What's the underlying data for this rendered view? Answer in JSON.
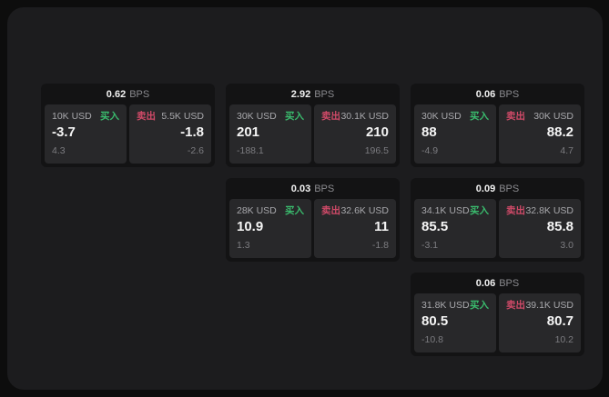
{
  "labels": {
    "bps_unit": "BPS",
    "buy": "买入",
    "sell": "卖出"
  },
  "colors": {
    "buy": "#3abb6d",
    "sell": "#d04a68",
    "panel_bg": "#1c1c1e",
    "card_bg": "#131314",
    "subpanel_bg": "#28282a"
  },
  "cards": [
    {
      "bps": "0.62",
      "buy": {
        "amount": "10K USD",
        "price": "-3.7",
        "delta": "4.3"
      },
      "sell": {
        "amount": "5.5K USD",
        "price": "-1.8",
        "delta": "-2.6"
      }
    },
    {
      "bps": "2.92",
      "buy": {
        "amount": "30K USD",
        "price": "201",
        "delta": "-188.1"
      },
      "sell": {
        "amount": "30.1K USD",
        "price": "210",
        "delta": "196.5"
      }
    },
    {
      "bps": "0.06",
      "buy": {
        "amount": "30K USD",
        "price": "88",
        "delta": "-4.9"
      },
      "sell": {
        "amount": "30K USD",
        "price": "88.2",
        "delta": "4.7"
      }
    },
    {
      "bps": "0.03",
      "buy": {
        "amount": "28K USD",
        "price": "10.9",
        "delta": "1.3"
      },
      "sell": {
        "amount": "32.6K USD",
        "price": "11",
        "delta": "-1.8"
      }
    },
    {
      "bps": "0.09",
      "buy": {
        "amount": "34.1K USD",
        "price": "85.5",
        "delta": "-3.1"
      },
      "sell": {
        "amount": "32.8K USD",
        "price": "85.8",
        "delta": "3.0"
      }
    },
    {
      "bps": "0.06",
      "buy": {
        "amount": "31.8K USD",
        "price": "80.5",
        "delta": "-10.8"
      },
      "sell": {
        "amount": "39.1K USD",
        "price": "80.7",
        "delta": "10.2"
      }
    }
  ]
}
